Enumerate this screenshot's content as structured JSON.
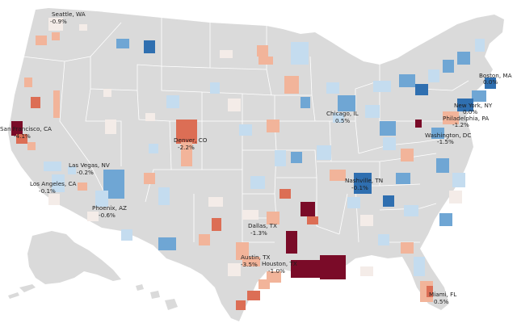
{
  "colors": {
    "background": "#ffffff",
    "land": "#dadada",
    "state_border": "#ffffff",
    "deep_blue": "#2f6fb0",
    "mid_blue": "#6fa6d4",
    "light_blue": "#c4dcef",
    "pale": "#f4ece8",
    "light_red": "#f2b49a",
    "mid_red": "#dc6e55",
    "deep_red": "#7a0b28"
  },
  "legend_scale": "diverging-blue-to-red",
  "cities": [
    {
      "name": "Seattle, WA",
      "value": "-0.9%"
    },
    {
      "name": "Boston, MA",
      "value": "0.0%"
    },
    {
      "name": "New York, NY",
      "value": "0.0%"
    },
    {
      "name": "Philadelphia, PA",
      "value": "-1.2%"
    },
    {
      "name": "Washington, DC",
      "value": "-1.5%"
    },
    {
      "name": "Chicago, IL",
      "value": "0.5%"
    },
    {
      "name": "San Francisco, CA",
      "value": "-4.1%"
    },
    {
      "name": "Denver, CO",
      "value": "-2.2%"
    },
    {
      "name": "Las Vegas, NV",
      "value": "-0.2%"
    },
    {
      "name": "Los Angeles, CA",
      "value": "-0.1%"
    },
    {
      "name": "Phoenix, AZ",
      "value": "-0.6%"
    },
    {
      "name": "Nashville, TN",
      "value": "-0.1%"
    },
    {
      "name": "Dallas, TX",
      "value": "-1.3%"
    },
    {
      "name": "Austin, TX",
      "value": "-3.5%"
    },
    {
      "name": "Houston, TX",
      "value": "-1.0%"
    },
    {
      "name": "Miami, FL",
      "value": "0.5%"
    }
  ]
}
